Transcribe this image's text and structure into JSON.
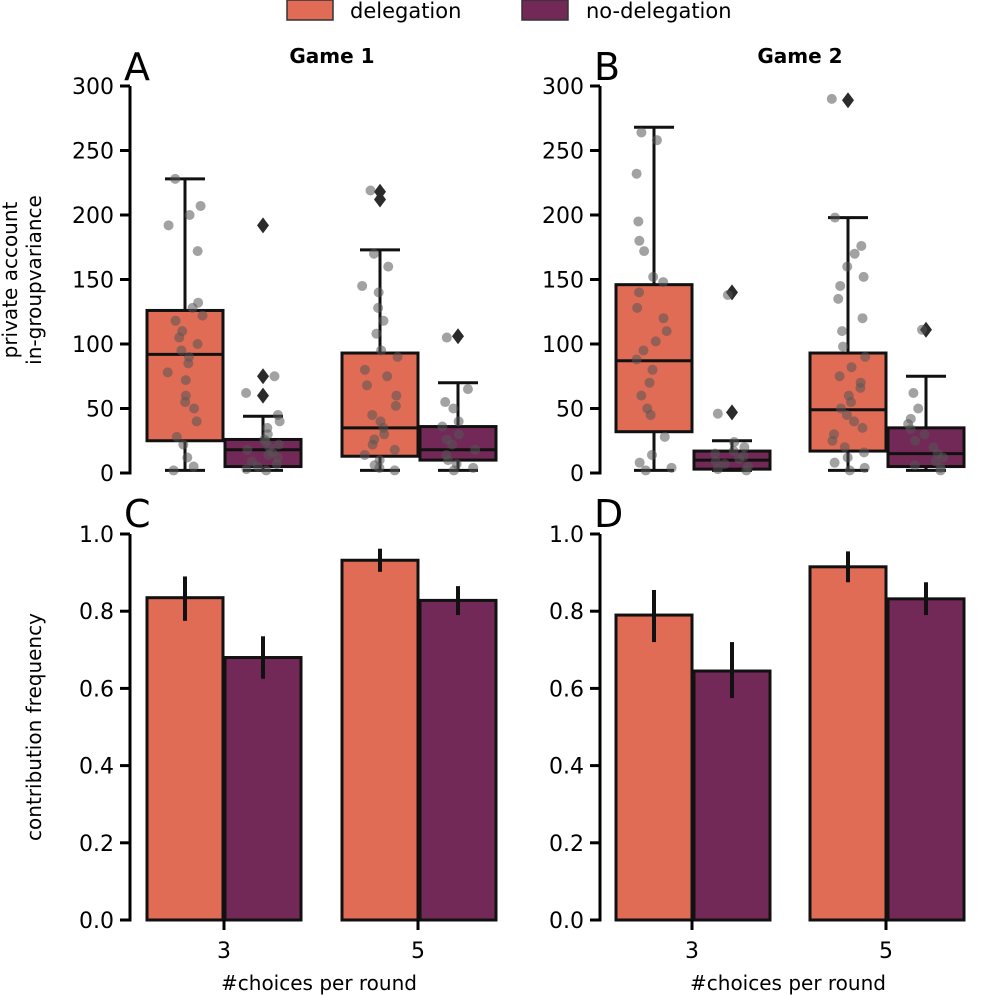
{
  "legend": [
    {
      "label": "delegation",
      "color": "#e06c56"
    },
    {
      "label": "no-delegation",
      "color": "#722957"
    }
  ],
  "chart_data": [
    {
      "panel": "A",
      "title": "Game 1",
      "type": "box",
      "ylabel": [
        "private account",
        "in-groupvariance"
      ],
      "xlabel": "",
      "ylim": [
        0,
        300
      ],
      "yticks": [
        0,
        50,
        100,
        150,
        200,
        250,
        300
      ],
      "categories": [
        "3",
        "5"
      ],
      "series": [
        {
          "name": "delegation",
          "boxes": [
            {
              "min": 2,
              "q1": 25,
              "median": 92,
              "q3": 126,
              "max": 228,
              "outliers": [],
              "points": [
                2,
                5,
                12,
                22,
                28,
                40,
                50,
                55,
                60,
                72,
                78,
                85,
                90,
                95,
                100,
                105,
                110,
                118,
                122,
                128,
                132,
                172,
                192,
                200,
                207,
                228
              ]
            },
            {
              "min": 2,
              "q1": 13,
              "median": 35,
              "q3": 93,
              "max": 173,
              "outliers": [
                212,
                218
              ],
              "points": [
                2,
                4,
                6,
                10,
                14,
                18,
                22,
                26,
                30,
                35,
                40,
                45,
                52,
                60,
                68,
                75,
                80,
                90,
                95,
                108,
                118,
                128,
                140,
                145,
                160,
                170,
                219
              ]
            }
          ]
        },
        {
          "name": "no-delegation",
          "boxes": [
            {
              "min": 2,
              "q1": 5,
              "median": 18,
              "q3": 26,
              "max": 44,
              "outliers": [
                60,
                75,
                192
              ],
              "points": [
                2,
                3,
                5,
                7,
                9,
                12,
                14,
                16,
                18,
                20,
                22,
                24,
                26,
                30,
                35,
                40,
                45,
                62,
                75
              ]
            },
            {
              "min": 2,
              "q1": 10,
              "median": 18,
              "q3": 36,
              "max": 70,
              "outliers": [
                106
              ],
              "points": [
                2,
                4,
                7,
                10,
                14,
                18,
                22,
                26,
                30,
                36,
                40,
                50,
                55,
                65,
                105
              ]
            }
          ]
        }
      ]
    },
    {
      "panel": "B",
      "title": "Game 2",
      "type": "box",
      "ylabel": [],
      "xlabel": "",
      "ylim": [
        0,
        300
      ],
      "yticks": [
        0,
        50,
        100,
        150,
        200,
        250,
        300
      ],
      "categories": [
        "3",
        "5"
      ],
      "series": [
        {
          "name": "delegation",
          "boxes": [
            {
              "min": 2,
              "q1": 32,
              "median": 87,
              "q3": 146,
              "max": 268,
              "outliers": [],
              "points": [
                2,
                4,
                8,
                14,
                28,
                45,
                50,
                60,
                70,
                80,
                88,
                95,
                102,
                110,
                120,
                128,
                140,
                148,
                152,
                172,
                180,
                195,
                232,
                258,
                264
              ]
            },
            {
              "min": 2,
              "q1": 17,
              "median": 49,
              "q3": 93,
              "max": 198,
              "outliers": [
                289
              ],
              "points": [
                2,
                4,
                8,
                12,
                16,
                20,
                25,
                30,
                35,
                40,
                45,
                50,
                55,
                60,
                66,
                70,
                75,
                82,
                90,
                98,
                110,
                120,
                135,
                145,
                152,
                160,
                170,
                176,
                198,
                290
              ]
            }
          ]
        },
        {
          "name": "no-delegation",
          "boxes": [
            {
              "min": 2,
              "q1": 3,
              "median": 10,
              "q3": 17,
              "max": 25,
              "outliers": [
                47,
                140
              ],
              "points": [
                2,
                3,
                5,
                7,
                9,
                11,
                13,
                15,
                17,
                20,
                24,
                46,
                138
              ]
            },
            {
              "min": 2,
              "q1": 5,
              "median": 15,
              "q3": 35,
              "max": 75,
              "outliers": [
                111
              ],
              "points": [
                2,
                4,
                6,
                9,
                12,
                15,
                20,
                25,
                30,
                34,
                38,
                42,
                50,
                62,
                111
              ]
            }
          ]
        }
      ]
    },
    {
      "panel": "C",
      "title": "",
      "type": "bar",
      "ylabel": [
        "contribution frequency"
      ],
      "xlabel": "#choices per round",
      "ylim": [
        0,
        1.0
      ],
      "yticks": [
        0.0,
        0.2,
        0.4,
        0.6,
        0.8,
        1.0
      ],
      "ytick_labels": [
        "0.0",
        "0.2",
        "0.4",
        "0.6",
        "0.8",
        "1.0"
      ],
      "categories": [
        "3",
        "5"
      ],
      "series": [
        {
          "name": "delegation",
          "values": [
            0.835,
            0.932
          ],
          "err_low": [
            0.775,
            0.902
          ],
          "err_high": [
            0.89,
            0.962
          ]
        },
        {
          "name": "no-delegation",
          "values": [
            0.68,
            0.828
          ],
          "err_low": [
            0.625,
            0.79
          ],
          "err_high": [
            0.735,
            0.865
          ]
        }
      ]
    },
    {
      "panel": "D",
      "title": "",
      "type": "bar",
      "ylabel": [],
      "xlabel": "#choices per round",
      "ylim": [
        0,
        1.0
      ],
      "yticks": [
        0.0,
        0.2,
        0.4,
        0.6,
        0.8,
        1.0
      ],
      "ytick_labels": [
        "0.0",
        "0.2",
        "0.4",
        "0.6",
        "0.8",
        "1.0"
      ],
      "categories": [
        "3",
        "5"
      ],
      "series": [
        {
          "name": "delegation",
          "values": [
            0.79,
            0.915
          ],
          "err_low": [
            0.72,
            0.875
          ],
          "err_high": [
            0.855,
            0.955
          ]
        },
        {
          "name": "no-delegation",
          "values": [
            0.645,
            0.832
          ],
          "err_low": [
            0.575,
            0.79
          ],
          "err_high": [
            0.72,
            0.875
          ]
        }
      ]
    }
  ]
}
